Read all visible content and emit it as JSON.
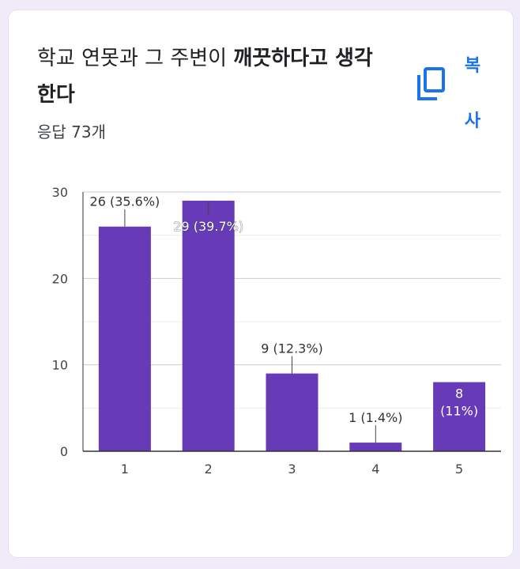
{
  "question": {
    "title_normal": "학교 연못과 그 주변이 ",
    "title_bold": "깨끗하다고 생각한다"
  },
  "copy": {
    "label": "복사",
    "icon": "copy-icon",
    "color": "#1a73e8"
  },
  "responses": {
    "label": "응답 73개"
  },
  "chart_data": {
    "type": "bar",
    "categories": [
      "1",
      "2",
      "3",
      "4",
      "5"
    ],
    "values": [
      26,
      29,
      9,
      1,
      8
    ],
    "data_labels": [
      "26 (35.6%)",
      "29 (39.7%)",
      "9 (12.3%)",
      "1 (1.4%)",
      "8 (11%)"
    ],
    "y_ticks": [
      "0",
      "10",
      "20",
      "30"
    ],
    "ylim": [
      0,
      30
    ],
    "grid": true,
    "bar_color": "#673ab7"
  }
}
